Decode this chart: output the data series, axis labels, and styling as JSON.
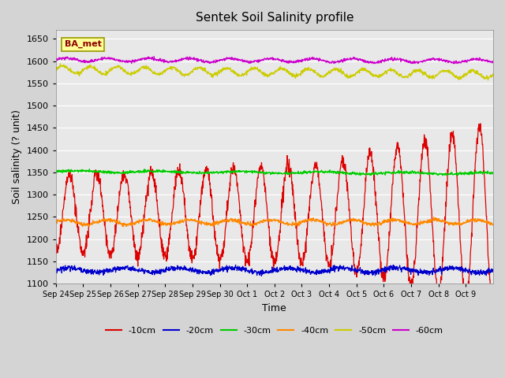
{
  "title": "Sentek Soil Salinity profile",
  "xlabel": "Time",
  "ylabel": "Soil salinity (? unit)",
  "ylim": [
    1100,
    1670
  ],
  "yticks": [
    1100,
    1150,
    1200,
    1250,
    1300,
    1350,
    1400,
    1450,
    1500,
    1550,
    1600,
    1650
  ],
  "annotation": "BA_met",
  "colors": {
    "-10cm": "#dd0000",
    "-20cm": "#0000cc",
    "-30cm": "#00cc00",
    "-40cm": "#ff8800",
    "-50cm": "#cccc00",
    "-60cm": "#cc00cc"
  },
  "x_labels": [
    "Sep 24",
    "Sep 25",
    "Sep 26",
    "Sep 27",
    "Sep 28",
    "Sep 29",
    "Sep 30",
    "Oct 1",
    "Oct 2",
    "Oct 3",
    "Oct 4",
    "Oct 5",
    "Oct 6",
    "Oct 7",
    "Oct 8",
    "Oct 9"
  ],
  "num_days": 16,
  "figsize": [
    6.4,
    4.8
  ],
  "dpi": 100,
  "fig_bg": "#d4d4d4",
  "plot_bg": "#e8e8e8"
}
